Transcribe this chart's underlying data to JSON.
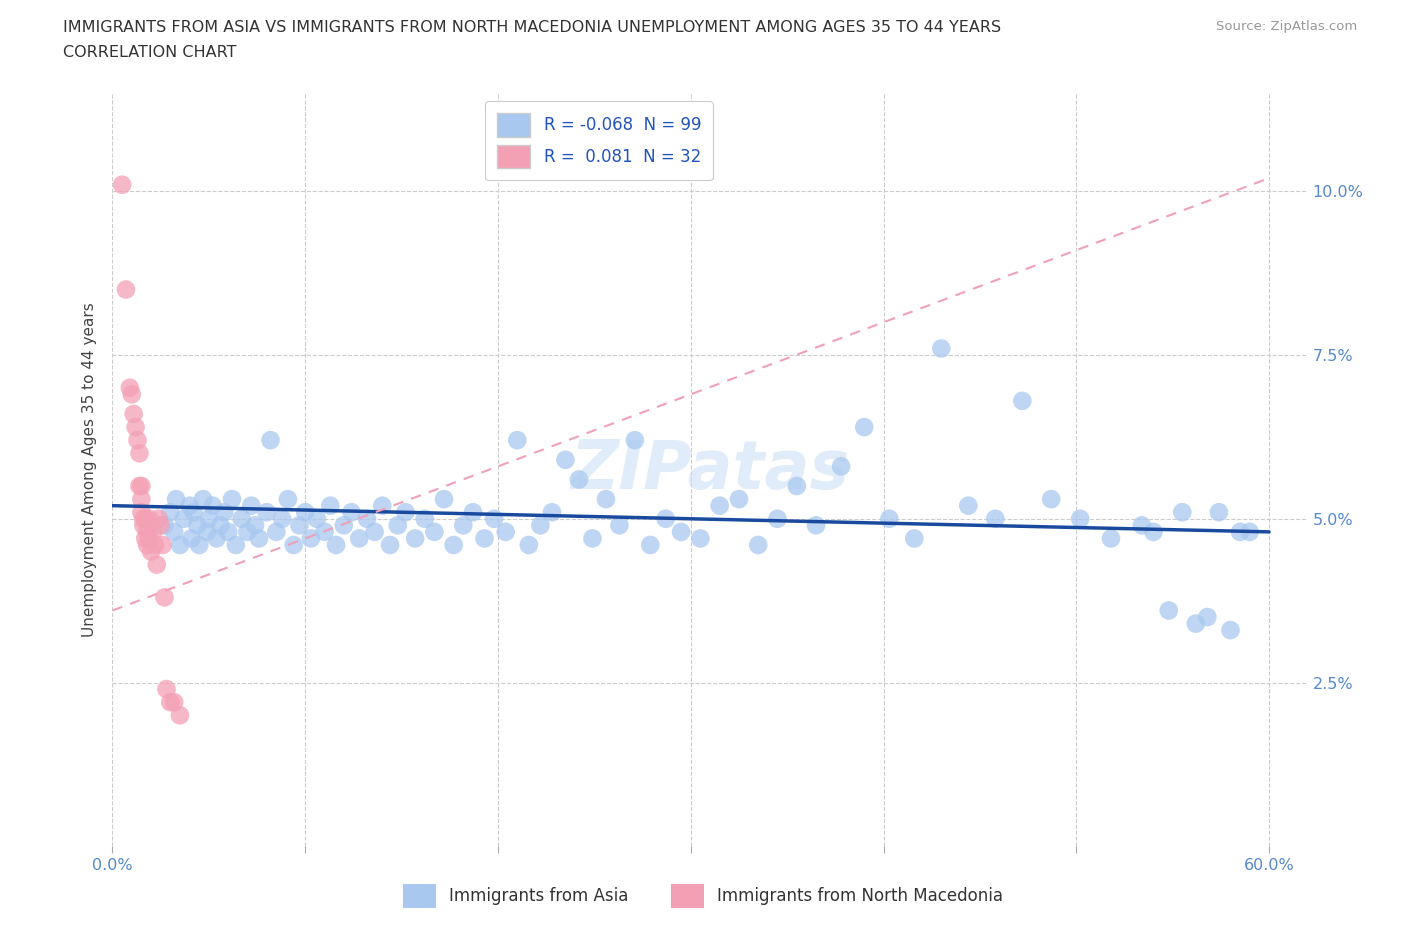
{
  "title_line1": "IMMIGRANTS FROM ASIA VS IMMIGRANTS FROM NORTH MACEDONIA UNEMPLOYMENT AMONG AGES 35 TO 44 YEARS",
  "title_line2": "CORRELATION CHART",
  "source_text": "Source: ZipAtlas.com",
  "ylabel": "Unemployment Among Ages 35 to 44 years",
  "legend_label1": "Immigrants from Asia",
  "legend_label2": "Immigrants from North Macedonia",
  "r1": -0.068,
  "n1": 99,
  "r2": 0.081,
  "n2": 32,
  "color_asia": "#a8c8f0",
  "color_macedonia": "#f4a0b4",
  "trendline_asia_color": "#1a4a9e",
  "trendline_macedonia_color": "#f0a0b8",
  "xlim": [
    0.0,
    0.62
  ],
  "ylim": [
    0.0,
    0.115
  ],
  "ytick_positions": [
    0.025,
    0.05,
    0.075,
    0.1
  ],
  "ytick_labels": [
    "2.5%",
    "5.0%",
    "7.5%",
    "10.0%"
  ],
  "xtick_positions": [
    0.0,
    0.1,
    0.2,
    0.3,
    0.4,
    0.5,
    0.6
  ],
  "xtick_labels": [
    "0.0%",
    "",
    "",
    "",
    "",
    "",
    "60.0%"
  ],
  "grid_color": "#cccccc",
  "tick_label_color": "#5588cc",
  "title_color": "#333333",
  "source_color": "#999999",
  "legend_text_color": "#2255bb",
  "watermark_text": "ZIPatas",
  "watermark_color": "#cce0f5",
  "bg_color": "#ffffff",
  "asia_x": [
    0.027,
    0.03,
    0.032,
    0.033,
    0.035,
    0.037,
    0.04,
    0.041,
    0.042,
    0.044,
    0.045,
    0.047,
    0.049,
    0.05,
    0.052,
    0.054,
    0.056,
    0.058,
    0.06,
    0.062,
    0.064,
    0.067,
    0.07,
    0.072,
    0.074,
    0.076,
    0.08,
    0.082,
    0.085,
    0.088,
    0.091,
    0.094,
    0.097,
    0.1,
    0.103,
    0.106,
    0.11,
    0.113,
    0.116,
    0.12,
    0.124,
    0.128,
    0.132,
    0.136,
    0.14,
    0.144,
    0.148,
    0.152,
    0.157,
    0.162,
    0.167,
    0.172,
    0.177,
    0.182,
    0.187,
    0.193,
    0.198,
    0.204,
    0.21,
    0.216,
    0.222,
    0.228,
    0.235,
    0.242,
    0.249,
    0.256,
    0.263,
    0.271,
    0.279,
    0.287,
    0.295,
    0.305,
    0.315,
    0.325,
    0.335,
    0.345,
    0.355,
    0.365,
    0.378,
    0.39,
    0.403,
    0.416,
    0.43,
    0.444,
    0.458,
    0.472,
    0.487,
    0.502,
    0.518,
    0.534,
    0.54,
    0.548,
    0.555,
    0.562,
    0.568,
    0.574,
    0.58,
    0.585,
    0.59
  ],
  "asia_y": [
    0.049,
    0.051,
    0.048,
    0.053,
    0.046,
    0.05,
    0.052,
    0.047,
    0.051,
    0.049,
    0.046,
    0.053,
    0.048,
    0.05,
    0.052,
    0.047,
    0.049,
    0.051,
    0.048,
    0.053,
    0.046,
    0.05,
    0.048,
    0.052,
    0.049,
    0.047,
    0.051,
    0.062,
    0.048,
    0.05,
    0.053,
    0.046,
    0.049,
    0.051,
    0.047,
    0.05,
    0.048,
    0.052,
    0.046,
    0.049,
    0.051,
    0.047,
    0.05,
    0.048,
    0.052,
    0.046,
    0.049,
    0.051,
    0.047,
    0.05,
    0.048,
    0.053,
    0.046,
    0.049,
    0.051,
    0.047,
    0.05,
    0.048,
    0.062,
    0.046,
    0.049,
    0.051,
    0.059,
    0.056,
    0.047,
    0.053,
    0.049,
    0.062,
    0.046,
    0.05,
    0.048,
    0.047,
    0.052,
    0.053,
    0.046,
    0.05,
    0.055,
    0.049,
    0.058,
    0.064,
    0.05,
    0.047,
    0.076,
    0.052,
    0.05,
    0.068,
    0.053,
    0.05,
    0.047,
    0.049,
    0.048,
    0.036,
    0.051,
    0.034,
    0.035,
    0.051,
    0.033,
    0.048,
    0.048
  ],
  "macedonia_x": [
    0.005,
    0.007,
    0.009,
    0.01,
    0.011,
    0.012,
    0.013,
    0.014,
    0.014,
    0.015,
    0.015,
    0.015,
    0.016,
    0.016,
    0.017,
    0.017,
    0.018,
    0.018,
    0.019,
    0.019,
    0.02,
    0.021,
    0.022,
    0.023,
    0.024,
    0.025,
    0.026,
    0.027,
    0.028,
    0.03,
    0.032,
    0.035
  ],
  "macedonia_y": [
    0.101,
    0.085,
    0.07,
    0.069,
    0.066,
    0.064,
    0.062,
    0.06,
    0.055,
    0.055,
    0.053,
    0.051,
    0.05,
    0.049,
    0.047,
    0.05,
    0.048,
    0.046,
    0.05,
    0.047,
    0.045,
    0.048,
    0.046,
    0.043,
    0.05,
    0.049,
    0.046,
    0.038,
    0.024,
    0.022,
    0.022,
    0.02
  ],
  "mac_trendline_x0": 0.0,
  "mac_trendline_y0": 0.036,
  "mac_trendline_x1": 0.6,
  "mac_trendline_y1": 0.102
}
